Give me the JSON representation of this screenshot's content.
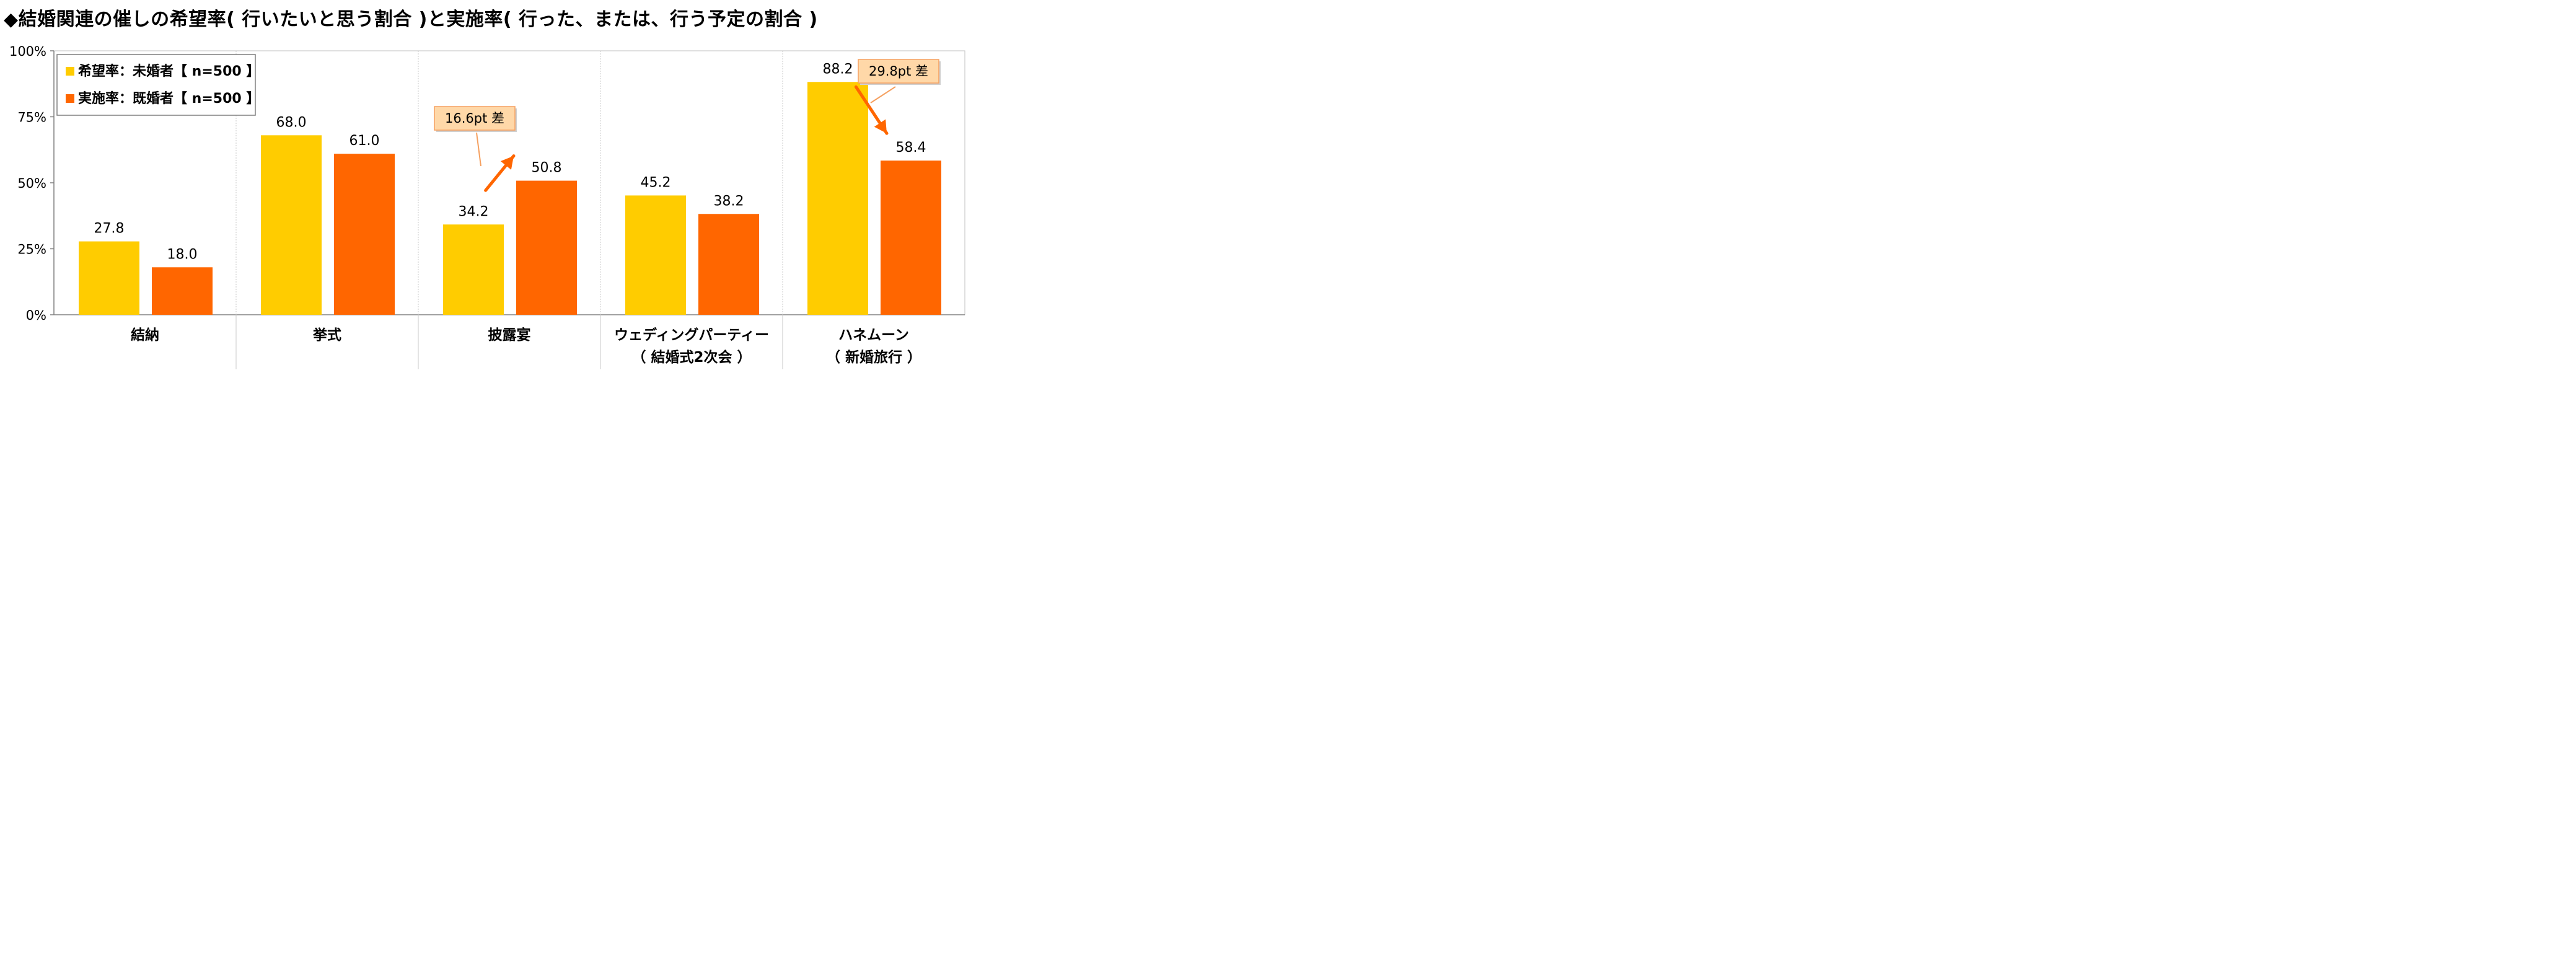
{
  "title": "◆結婚関連の催しの希望率( 行いたいと思う割合 )と実施率( 行った、または、行う予定の割合 )",
  "colors": {
    "series1": "#FFCC00",
    "series2": "#FF6600",
    "arrow": "#FF6600",
    "callout_fill": "#FFD8A8",
    "callout_border": "#F5A060"
  },
  "chart_data": {
    "type": "bar",
    "ylim": [
      0,
      100
    ],
    "yticks": [
      "0%",
      "25%",
      "50%",
      "75%",
      "100%"
    ],
    "ytick_values": [
      0,
      25,
      50,
      75,
      100
    ],
    "categories": [
      [
        "結納"
      ],
      [
        "挙式"
      ],
      [
        "披露宴"
      ],
      [
        "ウェディングパーティー",
        "（ 結婚式2次会 ）"
      ],
      [
        "ハネムーン",
        "（ 新婚旅行 ）"
      ]
    ],
    "series": [
      {
        "name": "希望率：未婚者【 n=500 】",
        "values": [
          27.8,
          68.0,
          34.2,
          45.2,
          88.2
        ],
        "labels": [
          "27.8",
          "68.0",
          "34.2",
          "45.2",
          "88.2"
        ]
      },
      {
        "name": "実施率：既婚者【 n=500 】",
        "values": [
          18.0,
          61.0,
          50.8,
          38.2,
          58.4
        ],
        "labels": [
          "18.0",
          "61.0",
          "50.8",
          "38.2",
          "58.4"
        ]
      }
    ],
    "legend": "top-left",
    "annotations": [
      {
        "category_index": 2,
        "text": "16.6pt 差",
        "direction": "up"
      },
      {
        "category_index": 4,
        "text": "29.8pt 差",
        "direction": "down"
      }
    ]
  }
}
